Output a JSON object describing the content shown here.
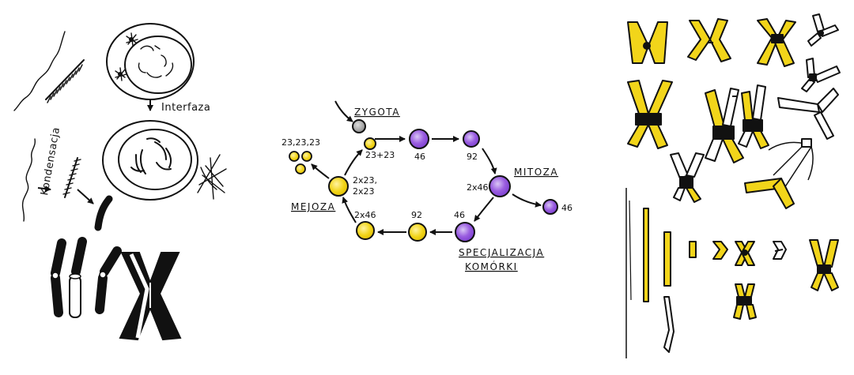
{
  "colors": {
    "ink": "#111111",
    "yellow": "#f2d51a",
    "purple": "#9a5de0",
    "purple_light": "#cbb2ef",
    "gray": "#9a9a9a",
    "paper": "#ffffff"
  },
  "panel_left": {
    "labels": {
      "interphase": "Interfaza",
      "condensation": "Kondensacja"
    }
  },
  "panel_middle": {
    "labels": {
      "zygote": "ZYGOTA",
      "mitosis": "MITOZA",
      "meiosis": "MEJOZA",
      "specialization_line1": "SPECJALIZACJA",
      "specialization_line2": "KOMÓRKI"
    },
    "counts": {
      "zygote_gametes": "23+23",
      "cycle_46_top": "46",
      "cycle_92_top": "92",
      "cycle_2x46_right": "2x46",
      "branch_46": "46",
      "cycle_46_bottom": "46",
      "cycle_92_bottom": "92",
      "cycle_2x46_bottom": "2x46",
      "meiosis_line1": "2x23,",
      "meiosis_line2": "2x23",
      "gametes": "23,23,23"
    }
  },
  "panel_right": {
    "labels": {}
  }
}
